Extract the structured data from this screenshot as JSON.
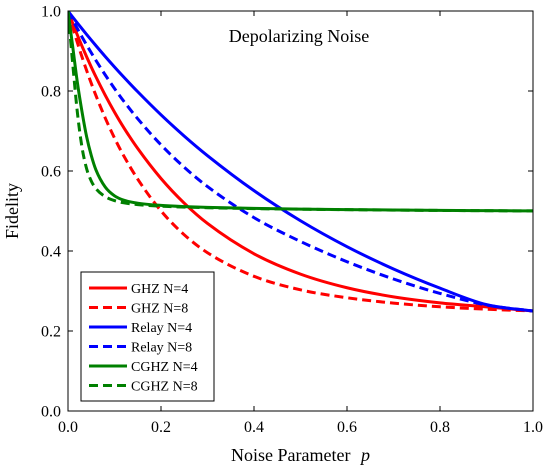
{
  "chart_data": {
    "type": "line",
    "annotation": "Depolarizing Noise",
    "xlabel": "Noise Parameter",
    "xlabel_var": "p",
    "ylabel": "Fidelity",
    "xlim": [
      0,
      1
    ],
    "ylim": [
      0,
      1
    ],
    "xticks": [
      0,
      0.2,
      0.4,
      0.6,
      0.8,
      1
    ],
    "yticks": [
      0,
      0.2,
      0.4,
      0.6,
      0.8,
      1
    ],
    "xtick_labels": [
      "0.0",
      "0.2",
      "0.4",
      "0.6",
      "0.8",
      "1.0"
    ],
    "ytick_labels": [
      "0.0",
      "0.2",
      "0.4",
      "0.6",
      "0.8",
      "1.0"
    ],
    "grid": false,
    "legend_position": "bottom-left",
    "x": [
      0,
      0.01,
      0.02,
      0.03,
      0.04,
      0.05,
      0.06,
      0.08,
      0.1,
      0.12,
      0.15,
      0.2,
      0.25,
      0.3,
      0.4,
      0.5,
      0.6,
      0.7,
      0.8,
      0.9,
      1.0
    ],
    "series": [
      {
        "name": "GHZ N=4",
        "color": "#ff0000",
        "dash": "solid",
        "values": [
          1.0,
          0.9695,
          0.9403,
          0.9124,
          0.8857,
          0.8601,
          0.8356,
          0.7896,
          0.7473,
          0.7084,
          0.6561,
          0.5812,
          0.5195,
          0.4688,
          0.3931,
          0.3422,
          0.3081,
          0.2854,
          0.2703,
          0.2604,
          0.25
        ]
      },
      {
        "name": "GHZ N=8",
        "color": "#ff0000",
        "dash": "dashed",
        "values": [
          1.0,
          0.9597,
          0.9216,
          0.8856,
          0.8515,
          0.8193,
          0.7888,
          0.7327,
          0.6825,
          0.6377,
          0.5795,
          0.5003,
          0.4405,
          0.3957,
          0.3367,
          0.3029,
          0.2831,
          0.2698,
          0.2605,
          0.2545,
          0.25
        ]
      },
      {
        "name": "Relay N=4",
        "color": "#0000ff",
        "dash": "solid",
        "values": [
          1.0,
          0.985,
          0.9702,
          0.9557,
          0.9414,
          0.9273,
          0.9134,
          0.8863,
          0.8601,
          0.8347,
          0.7981,
          0.7405,
          0.6873,
          0.6384,
          0.5509,
          0.4756,
          0.4108,
          0.3551,
          0.3071,
          0.2659,
          0.25
        ]
      },
      {
        "name": "Relay N=8",
        "color": "#0000ff",
        "dash": "dashed",
        "values": [
          1.0,
          0.9778,
          0.9563,
          0.9354,
          0.9152,
          0.8956,
          0.8766,
          0.8403,
          0.8063,
          0.7744,
          0.7305,
          0.6654,
          0.6093,
          0.561,
          0.4834,
          0.4238,
          0.3732,
          0.33,
          0.294,
          0.265,
          0.25
        ]
      },
      {
        "name": "CGHZ N=4",
        "color": "#008000",
        "dash": "solid",
        "values": [
          1.0,
          0.912,
          0.8225,
          0.749,
          0.686,
          0.639,
          0.603,
          0.56,
          0.538,
          0.527,
          0.5195,
          0.514,
          0.511,
          0.509,
          0.5065,
          0.5048,
          0.5035,
          0.5024,
          0.5015,
          0.5008,
          0.5002
        ]
      },
      {
        "name": "CGHZ N=8",
        "color": "#008000",
        "dash": "dashed",
        "values": [
          1.0,
          0.87,
          0.748,
          0.66,
          0.606,
          0.575,
          0.556,
          0.536,
          0.526,
          0.5205,
          0.516,
          0.512,
          0.5098,
          0.5082,
          0.506,
          0.5045,
          0.5033,
          0.5022,
          0.5014,
          0.5007,
          0.5002
        ]
      }
    ]
  }
}
